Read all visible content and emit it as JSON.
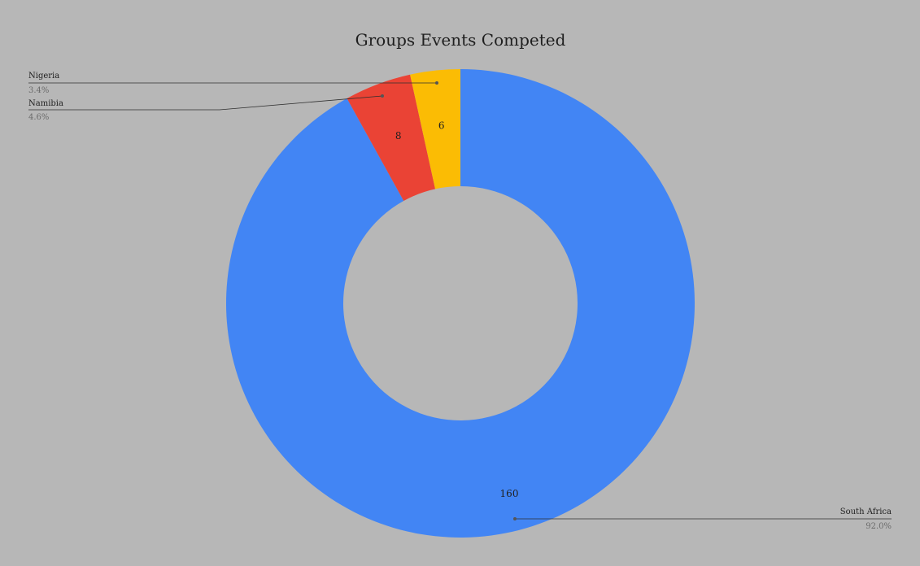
{
  "chart_data": {
    "type": "pie",
    "donut": true,
    "title": "Groups Events Competed",
    "slices": [
      {
        "label": "South Africa",
        "value": 160,
        "percent": "92.0%",
        "color": "#4285f4"
      },
      {
        "label": "Namibia",
        "value": 8,
        "percent": "4.6%",
        "color": "#ea4335"
      },
      {
        "label": "Nigeria",
        "value": 6,
        "percent": "3.4%",
        "color": "#fbbc04"
      }
    ],
    "legend": "callout-labels",
    "background": "#b7b7b7"
  }
}
